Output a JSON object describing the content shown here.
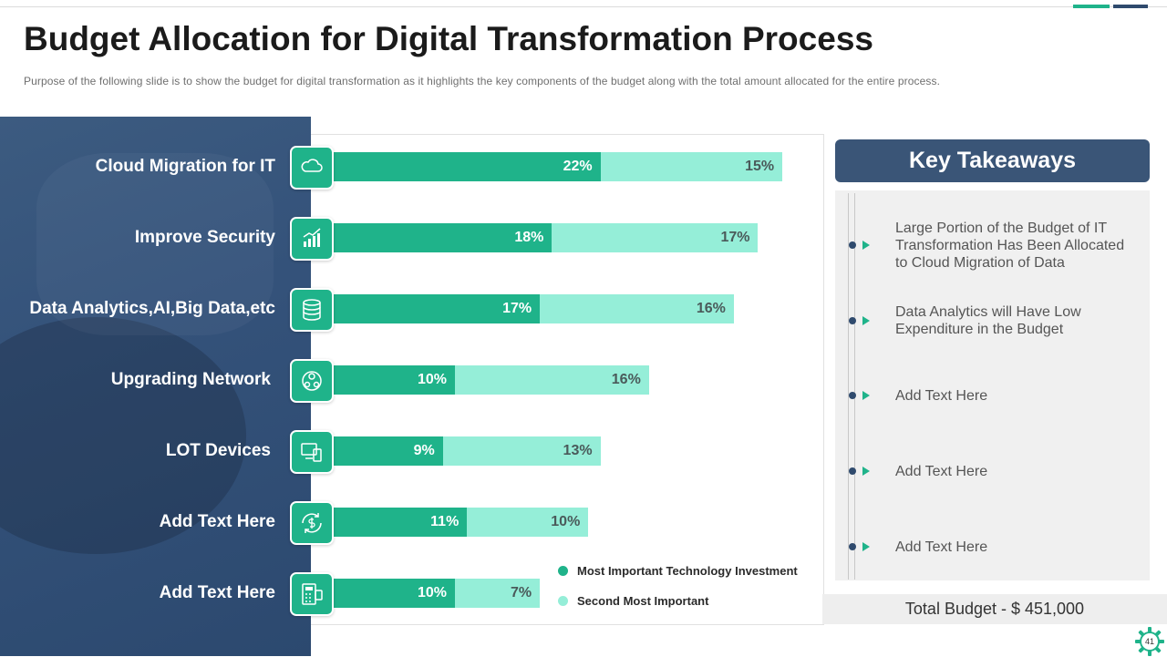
{
  "slide": {
    "title": "Budget Allocation for Digital Transformation Process",
    "subtitle": "Purpose of the following  slide is to show the budget for digital transformation  as it highlights the key components of the budget along with the total amount allocated for the entire process.",
    "page_number": "41"
  },
  "colors": {
    "series1": "#1fb38a",
    "series2": "#95eed8",
    "navy": "#3a5577"
  },
  "chart_data": {
    "type": "bar",
    "orientation": "horizontal",
    "stacked": true,
    "categories": [
      "Cloud Migration for IT",
      "Improve Security",
      "Data Analytics,AI,Big Data,etc",
      "Upgrading Network",
      "LOT Devices",
      "Add Text Here",
      "Add Text Here"
    ],
    "series": [
      {
        "name": "Most Important Technology Investment",
        "values": [
          22,
          18,
          17,
          10,
          9,
          11,
          10
        ],
        "labels": [
          "22%",
          "18%",
          "17%",
          "10%",
          "9%",
          "11%",
          "10%"
        ]
      },
      {
        "name": "Second Most Important",
        "values": [
          15,
          17,
          16,
          16,
          13,
          10,
          7
        ],
        "labels": [
          "15%",
          "17%",
          "16%",
          "16%",
          "13%",
          "10%",
          "7%"
        ]
      }
    ],
    "icons": [
      "cloud-icon",
      "growth-chart-icon",
      "database-icon",
      "network-icon",
      "devices-icon",
      "refresh-money-icon",
      "calculator-icon"
    ],
    "xlim": [
      0,
      40
    ],
    "legend": "bottom-right",
    "grid": false
  },
  "takeaways": {
    "header": "Key Takeaways",
    "items": [
      "Large Portion of the Budget of IT Transformation Has Been Allocated to Cloud Migration of Data",
      "Data Analytics will Have Low Expenditure in the Budget",
      "Add Text Here",
      "Add Text Here",
      "Add Text Here"
    ],
    "total": "Total Budget - $ 451,000"
  }
}
